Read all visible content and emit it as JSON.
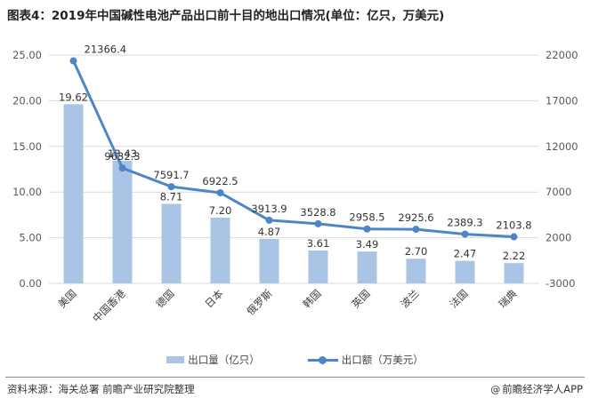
{
  "title": "图表4：2019年中国碱性电池产品出口前十目的地出口情况(单位：亿只，万美元)",
  "footer": {
    "source": "资料来源：海关总署 前瞻产业研究院整理",
    "brand": "前瞻经济学人APP",
    "brand_icon": "logo-icon"
  },
  "legend": {
    "bar_label": "出口量（亿只）",
    "line_label": "出口额（万美元）"
  },
  "colors": {
    "bar": "#a9c4e4",
    "line": "#4d86c6",
    "grid": "#d9d9d9",
    "axis_text": "#595959"
  },
  "chart_data": {
    "type": "bar",
    "categories": [
      "美国",
      "中国香港",
      "德国",
      "日本",
      "俄罗斯",
      "韩国",
      "英国",
      "波兰",
      "法国",
      "瑞典"
    ],
    "series": [
      {
        "name": "出口量（亿只）",
        "type": "bar",
        "axis": "left",
        "values": [
          19.62,
          13.43,
          8.71,
          7.2,
          4.87,
          3.61,
          3.49,
          2.7,
          2.47,
          2.22
        ],
        "labels": [
          "19.62",
          "13.43",
          "8.71",
          "7.20",
          "4.87",
          "3.61",
          "3.49",
          "2.70",
          "2.47",
          "2.22"
        ]
      },
      {
        "name": "出口额（万美元）",
        "type": "line",
        "axis": "right",
        "values": [
          21366.4,
          9632.3,
          7591.7,
          6922.5,
          3913.9,
          3528.8,
          2958.5,
          2925.6,
          2389.3,
          2103.8
        ],
        "labels": [
          "21366.4",
          "9632.3",
          "7591.7",
          "6922.5",
          "3913.9",
          "3528.8",
          "2958.5",
          "2925.6",
          "2389.3",
          "2103.8"
        ]
      }
    ],
    "y_left": {
      "ylim": [
        0,
        25
      ],
      "ticks": [
        "0.00",
        "5.00",
        "10.00",
        "15.00",
        "20.00",
        "25.00"
      ]
    },
    "y_right": {
      "ylim": [
        -3000,
        22000
      ],
      "ticks": [
        "-3000",
        "2000",
        "7000",
        "12000",
        "17000",
        "22000"
      ]
    },
    "grid": true,
    "legend_position": "bottom"
  }
}
